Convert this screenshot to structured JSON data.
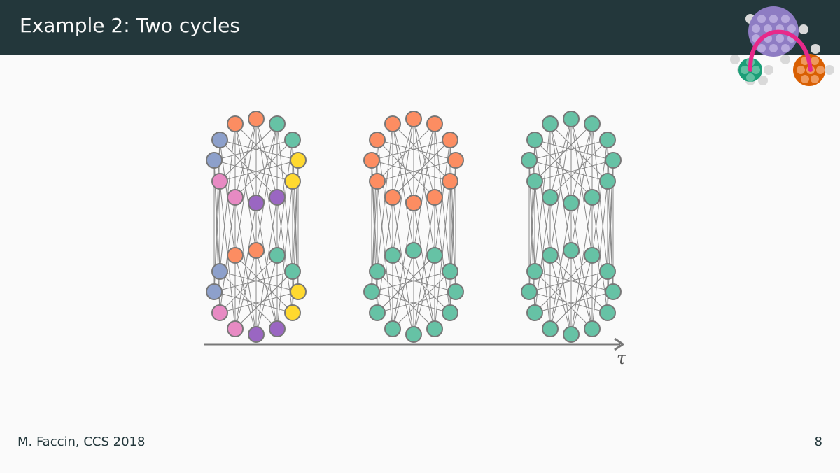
{
  "slide": {
    "title": "Example 2: Two cycles",
    "footer_author": "M. Faccin, CCS 2018",
    "page_number": "8"
  },
  "axis": {
    "label": "τ"
  },
  "colors": {
    "header_bg": "#23373b",
    "teal": "#66c2a5",
    "orange": "#fc8d62",
    "blue": "#8da0cb",
    "pink": "#e78ac3",
    "purple": "#9a66c2",
    "yellow": "#ffd92f",
    "edge": "#888888",
    "node_stroke": "#777777",
    "logo_purple": "#8e7cc3",
    "logo_green": "#1b9e77",
    "logo_orange": "#d95f02",
    "logo_magenta": "#e7298a"
  },
  "graphs": [
    {
      "name": "graph-1",
      "node_colors": [
        "orange",
        "teal",
        "teal",
        "yellow",
        "yellow",
        "purple",
        "purple",
        "pink",
        "pink",
        "blue",
        "blue",
        "orange",
        "orange",
        "teal",
        "teal",
        "yellow",
        "yellow",
        "purple",
        "purple",
        "pink",
        "pink",
        "blue",
        "blue",
        "orange"
      ]
    },
    {
      "name": "graph-2",
      "node_colors": [
        "orange",
        "orange",
        "orange",
        "orange",
        "orange",
        "orange",
        "orange",
        "orange",
        "orange",
        "orange",
        "orange",
        "orange",
        "teal",
        "teal",
        "teal",
        "teal",
        "teal",
        "teal",
        "teal",
        "teal",
        "teal",
        "teal",
        "teal",
        "teal"
      ]
    },
    {
      "name": "graph-3",
      "node_colors": [
        "teal",
        "teal",
        "teal",
        "teal",
        "teal",
        "teal",
        "teal",
        "teal",
        "teal",
        "teal",
        "teal",
        "teal",
        "teal",
        "teal",
        "teal",
        "teal",
        "teal",
        "teal",
        "teal",
        "teal",
        "teal",
        "teal",
        "teal",
        "teal"
      ]
    }
  ]
}
